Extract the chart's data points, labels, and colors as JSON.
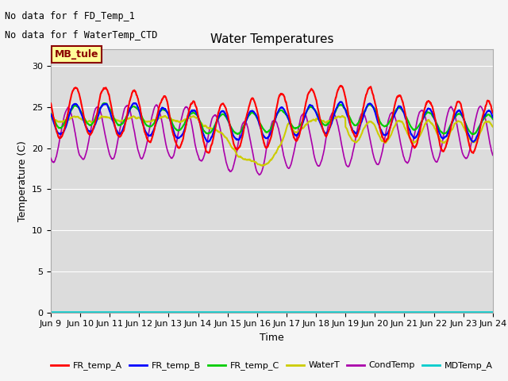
{
  "title": "Water Temperatures",
  "xlabel": "Time",
  "ylabel": "Temperature (C)",
  "ylim": [
    0,
    32
  ],
  "yticks": [
    0,
    5,
    10,
    15,
    20,
    25,
    30
  ],
  "xlim_start": 0,
  "xlim_end": 360,
  "xtick_labels": [
    "Jun 9",
    "Jun 10",
    "Jun 11",
    "Jun 12",
    "Jun 13",
    "Jun 14",
    "Jun 15",
    "Jun 16",
    "Jun 17",
    "Jun 18",
    "Jun 19",
    "Jun 20",
    "Jun 21",
    "Jun 22",
    "Jun 23",
    "Jun 24"
  ],
  "xtick_positions": [
    0,
    24,
    48,
    72,
    96,
    120,
    144,
    168,
    192,
    216,
    240,
    264,
    288,
    312,
    336,
    360
  ],
  "colors": {
    "FR_temp_A": "#ff0000",
    "FR_temp_B": "#0000ff",
    "FR_temp_C": "#00cc00",
    "WaterT": "#cccc00",
    "CondTemp": "#aa00aa",
    "MDTemp_A": "#00cccc"
  },
  "ann1": "No data for f FD_Temp_1",
  "ann2": "No data for f WaterTemp_CTD",
  "mb_tule_label": "MB_tule",
  "plot_bg": "#dcdcdc",
  "fig_bg": "#f5f5f5"
}
